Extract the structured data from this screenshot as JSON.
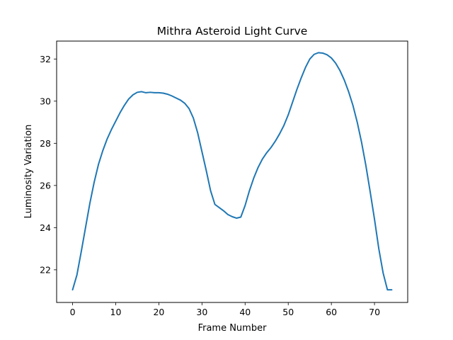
{
  "chart_data": {
    "type": "line",
    "title": "Mithra Asteroid Light Curve",
    "xlabel": "Frame Number",
    "ylabel": "Luminosity Variation",
    "xlim": [
      -3.7,
      77.7
    ],
    "ylim": [
      20.45,
      32.85
    ],
    "xticks": [
      0,
      10,
      20,
      30,
      40,
      50,
      60,
      70
    ],
    "yticks": [
      22,
      24,
      26,
      28,
      30,
      32
    ],
    "grid": false,
    "legend": "none",
    "series": [
      {
        "color": "#1f77b4",
        "x": [
          0,
          1,
          2,
          3,
          4,
          5,
          6,
          7,
          8,
          9,
          10,
          11,
          12,
          13,
          14,
          15,
          16,
          17,
          18,
          19,
          20,
          21,
          22,
          23,
          24,
          25,
          26,
          27,
          28,
          29,
          30,
          31,
          32,
          33,
          34,
          35,
          36,
          37,
          38,
          39,
          40,
          41,
          42,
          43,
          44,
          45,
          46,
          47,
          48,
          49,
          50,
          51,
          52,
          53,
          54,
          55,
          56,
          57,
          58,
          59,
          60,
          61,
          62,
          63,
          64,
          65,
          66,
          67,
          68,
          69,
          70,
          71,
          72,
          73,
          74
        ],
        "y": [
          21.05,
          21.75,
          22.85,
          24.0,
          25.15,
          26.15,
          27.0,
          27.65,
          28.2,
          28.65,
          29.05,
          29.45,
          29.8,
          30.1,
          30.3,
          30.42,
          30.45,
          30.4,
          30.42,
          30.4,
          30.4,
          30.38,
          30.33,
          30.25,
          30.15,
          30.05,
          29.9,
          29.65,
          29.2,
          28.5,
          27.6,
          26.7,
          25.75,
          25.1,
          24.95,
          24.8,
          24.62,
          24.52,
          24.45,
          24.5,
          25.05,
          25.75,
          26.35,
          26.85,
          27.25,
          27.55,
          27.8,
          28.1,
          28.45,
          28.85,
          29.35,
          29.95,
          30.55,
          31.1,
          31.6,
          32.0,
          32.22,
          32.3,
          32.28,
          32.2,
          32.05,
          31.8,
          31.45,
          31.0,
          30.45,
          29.8,
          29.0,
          28.05,
          26.95,
          25.7,
          24.4,
          23.0,
          21.85,
          21.05,
          21.05
        ]
      }
    ]
  }
}
